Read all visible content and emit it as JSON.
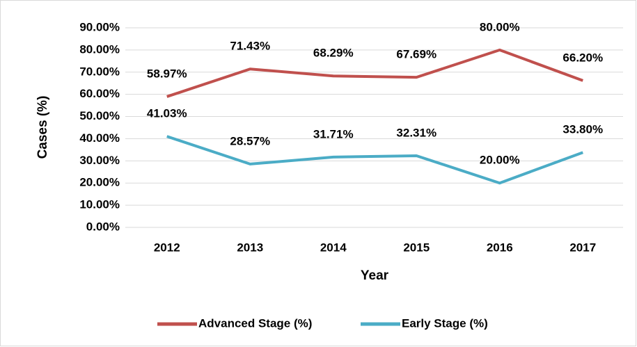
{
  "chart_data": {
    "type": "line",
    "x_label": "Year",
    "y_label": "Cases (%)",
    "categories": [
      "2012",
      "2013",
      "2014",
      "2015",
      "2016",
      "2017"
    ],
    "series": [
      {
        "name": "Advanced Stage (%)",
        "color": "#c0504d",
        "values": [
          58.97,
          71.43,
          68.29,
          67.69,
          80.0,
          66.2
        ],
        "value_labels": [
          "58.97%",
          "71.43%",
          "68.29%",
          "67.69%",
          "80.00%",
          "66.20%"
        ]
      },
      {
        "name": "Early Stage (%)",
        "color": "#4bacc6",
        "values": [
          41.03,
          28.57,
          31.71,
          32.31,
          20.0,
          33.8
        ],
        "value_labels": [
          "41.03%",
          "28.57%",
          "31.71%",
          "32.31%",
          "20.00%",
          "33.80%"
        ]
      }
    ],
    "ylim": [
      0,
      90
    ],
    "yticks": [
      {
        "value": 0,
        "label": "0.00%"
      },
      {
        "value": 10,
        "label": "10.00%"
      },
      {
        "value": 20,
        "label": "20.00%"
      },
      {
        "value": 30,
        "label": "30.00%"
      },
      {
        "value": 40,
        "label": "40.00%"
      },
      {
        "value": 50,
        "label": "50.00%"
      },
      {
        "value": 60,
        "label": "60.00%"
      },
      {
        "value": 70,
        "label": "70.00%"
      },
      {
        "value": 80,
        "label": "80.00%"
      },
      {
        "value": 90,
        "label": "90.00%"
      }
    ],
    "grid": true,
    "legend": "bottom"
  }
}
